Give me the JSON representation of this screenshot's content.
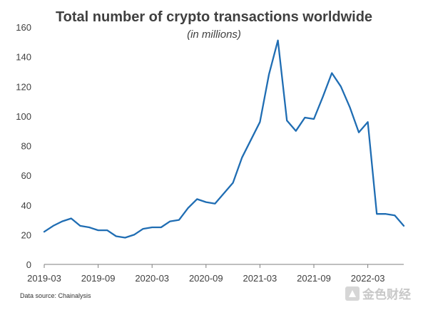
{
  "chart_data": {
    "type": "line",
    "title": "Total number of crypto transactions worldwide",
    "subtitle": "(in millions)",
    "xlabel": "",
    "ylabel": "",
    "ylim": [
      0,
      160
    ],
    "yticks": [
      0,
      20,
      40,
      60,
      80,
      100,
      120,
      140,
      160
    ],
    "xtick_labels": [
      "2019-03",
      "2019-09",
      "2020-03",
      "2020-09",
      "2021-03",
      "2021-09",
      "2022-03"
    ],
    "x_range": [
      "2019-03",
      "2022-07"
    ],
    "grid": false,
    "legend": "none",
    "series": [
      {
        "color": "#1f6db3",
        "x": [
          "2019-03",
          "2019-04",
          "2019-05",
          "2019-06",
          "2019-07",
          "2019-08",
          "2019-09",
          "2019-10",
          "2019-11",
          "2019-12",
          "2020-01",
          "2020-02",
          "2020-03",
          "2020-04",
          "2020-05",
          "2020-06",
          "2020-07",
          "2020-08",
          "2020-09",
          "2020-10",
          "2020-11",
          "2020-12",
          "2021-01",
          "2021-02",
          "2021-03",
          "2021-04",
          "2021-05",
          "2021-06",
          "2021-07",
          "2021-08",
          "2021-09",
          "2021-10",
          "2021-11",
          "2021-12",
          "2022-01",
          "2022-02",
          "2022-03",
          "2022-04",
          "2022-05",
          "2022-06",
          "2022-07"
        ],
        "values": [
          22,
          26,
          29,
          31,
          26,
          25,
          23,
          23,
          19,
          18,
          20,
          24,
          25,
          25,
          29,
          30,
          38,
          44,
          42,
          41,
          48,
          55,
          72,
          84,
          96,
          128,
          151,
          97,
          90,
          99,
          98,
          113,
          129,
          120,
          106,
          89,
          96,
          34,
          34,
          33,
          26
        ]
      }
    ]
  },
  "footer": {
    "source": "Data source: Chainalysis",
    "watermark_text": "金色财经"
  }
}
